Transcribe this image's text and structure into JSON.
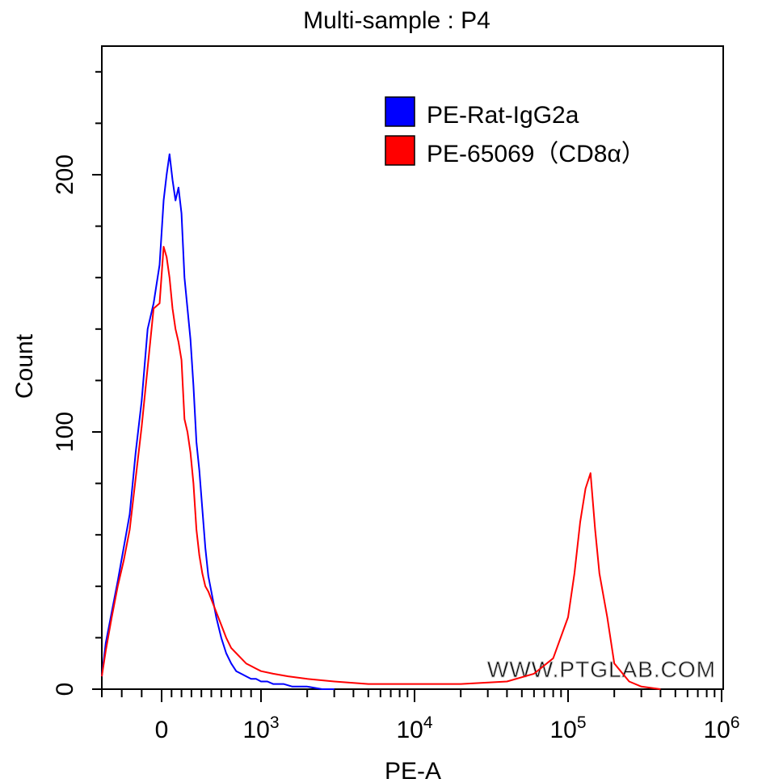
{
  "chart_data": {
    "type": "line",
    "title": "Multi-sample : P4",
    "xlabel": "PE-A",
    "ylabel": "Count",
    "x_scale": "biexponential",
    "xlim": [
      -300,
      1000000
    ],
    "ylim": [
      0,
      250
    ],
    "y_ticks": [
      0,
      100,
      200
    ],
    "y_tick_labels": [
      "0",
      "100",
      "200"
    ],
    "x_ticks": [
      {
        "value": 0,
        "label": "0"
      },
      {
        "value": 1000,
        "base": "10",
        "exp": "3"
      },
      {
        "value": 10000,
        "base": "10",
        "exp": "4"
      },
      {
        "value": 100000,
        "base": "10",
        "exp": "5"
      },
      {
        "value": 1000000,
        "base": "10",
        "exp": "6"
      }
    ],
    "legend_position": "top-right",
    "watermark": "WWW.PTGLAB.COM",
    "series": [
      {
        "name": "PE-Rat-IgG2a",
        "color": "#0000ff",
        "x": [
          -300,
          -280,
          -250,
          -220,
          -190,
          -160,
          -130,
          -100,
          -70,
          -40,
          -10,
          20,
          50,
          80,
          110,
          140,
          170,
          200,
          230,
          260,
          290,
          320,
          350,
          380,
          410,
          440,
          470,
          500,
          550,
          600,
          650,
          700,
          750,
          800,
          850,
          900,
          950,
          1000,
          1100,
          1200,
          1400,
          1600,
          1800,
          2000,
          2500,
          3000
        ],
        "y": [
          5,
          18,
          30,
          42,
          55,
          68,
          92,
          112,
          140,
          150,
          165,
          190,
          200,
          208,
          198,
          190,
          195,
          185,
          160,
          148,
          136,
          118,
          96,
          85,
          70,
          55,
          44,
          38,
          28,
          20,
          14,
          10,
          7,
          6,
          5,
          4,
          4,
          3,
          3,
          2,
          2,
          1,
          1,
          1,
          0,
          0
        ]
      },
      {
        "name": "PE-65069（CD8α）",
        "color": "#ff0000",
        "x": [
          -300,
          -280,
          -250,
          -220,
          -190,
          -160,
          -130,
          -100,
          -70,
          -40,
          -10,
          20,
          50,
          80,
          110,
          140,
          170,
          200,
          230,
          260,
          290,
          320,
          350,
          380,
          410,
          440,
          470,
          500,
          550,
          600,
          650,
          700,
          750,
          800,
          850,
          900,
          950,
          1000,
          1200,
          1500,
          2000,
          3000,
          5000,
          8000,
          10000,
          20000,
          40000,
          60000,
          80000,
          100000,
          110000,
          120000,
          130000,
          140000,
          150000,
          160000,
          180000,
          200000,
          250000,
          300000,
          400000
        ],
        "y": [
          5,
          15,
          28,
          40,
          50,
          62,
          82,
          102,
          125,
          148,
          150,
          172,
          168,
          160,
          148,
          140,
          135,
          128,
          105,
          100,
          92,
          80,
          62,
          52,
          45,
          40,
          38,
          35,
          30,
          25,
          20,
          16,
          14,
          12,
          10,
          9,
          8,
          7,
          6,
          5,
          4,
          3,
          2,
          2,
          2,
          2,
          3,
          6,
          12,
          28,
          45,
          65,
          78,
          84,
          62,
          45,
          28,
          10,
          3,
          1,
          0
        ]
      }
    ]
  }
}
